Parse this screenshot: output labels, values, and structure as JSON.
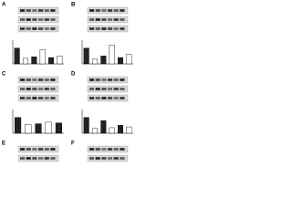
{
  "panels": [
    {
      "letter": "A",
      "ylim": [
        0,
        1.5
      ],
      "bars": [
        1.0,
        0.35,
        0.45,
        0.9,
        0.4,
        0.5
      ]
    },
    {
      "letter": "B",
      "ylim": [
        0,
        1.5
      ],
      "bars": [
        1.0,
        0.3,
        0.5,
        1.2,
        0.4,
        0.6
      ]
    },
    {
      "letter": "C",
      "ylim": [
        0,
        1.5
      ],
      "bars": [
        1.0,
        0.55,
        0.6,
        0.7,
        0.65
      ]
    },
    {
      "letter": "D",
      "ylim": [
        0,
        1.5
      ],
      "bars": [
        1.0,
        0.3,
        0.8,
        0.35,
        0.5,
        0.4
      ]
    },
    {
      "letter": "E"
    },
    {
      "letter": "F"
    }
  ]
}
